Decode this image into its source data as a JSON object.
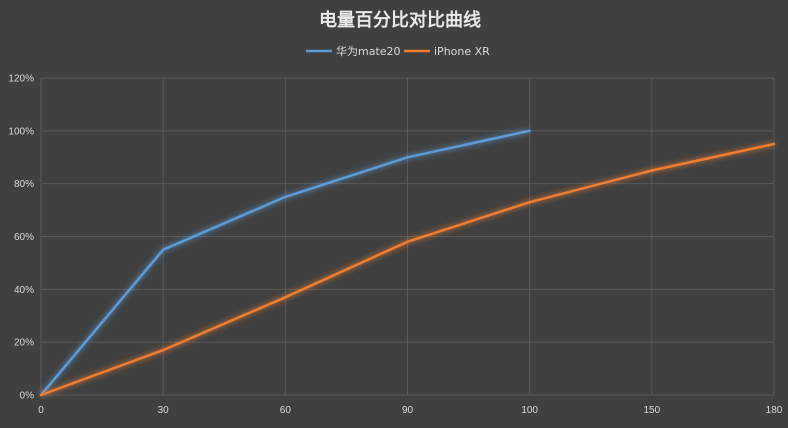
{
  "chart_data": {
    "type": "line",
    "title": "电量百分比对比曲线",
    "x": [
      0,
      30,
      60,
      90,
      100,
      150,
      180
    ],
    "x_tick_labels": [
      "0",
      "30",
      "60",
      "90",
      "100",
      "150",
      "180"
    ],
    "y_tick_labels": [
      "0%",
      "20%",
      "40%",
      "60%",
      "80%",
      "100%",
      "120%"
    ],
    "ylim": [
      0,
      120
    ],
    "y_unit": "%",
    "grid": true,
    "legend_position": "top-center",
    "series": [
      {
        "name": "华为mate20",
        "color": "#5b9bd5",
        "points": [
          [
            0,
            0
          ],
          [
            30,
            55
          ],
          [
            60,
            75
          ],
          [
            90,
            90
          ],
          [
            100,
            100
          ]
        ]
      },
      {
        "name": "iPhone XR",
        "color": "#ed7d31",
        "points": [
          [
            0,
            0
          ],
          [
            30,
            17
          ],
          [
            60,
            37
          ],
          [
            90,
            58
          ],
          [
            100,
            73
          ],
          [
            150,
            85
          ],
          [
            180,
            95
          ]
        ]
      }
    ],
    "colors": {
      "background": "#404040",
      "gridline": "#595959",
      "text": "#d9d9d9"
    }
  }
}
